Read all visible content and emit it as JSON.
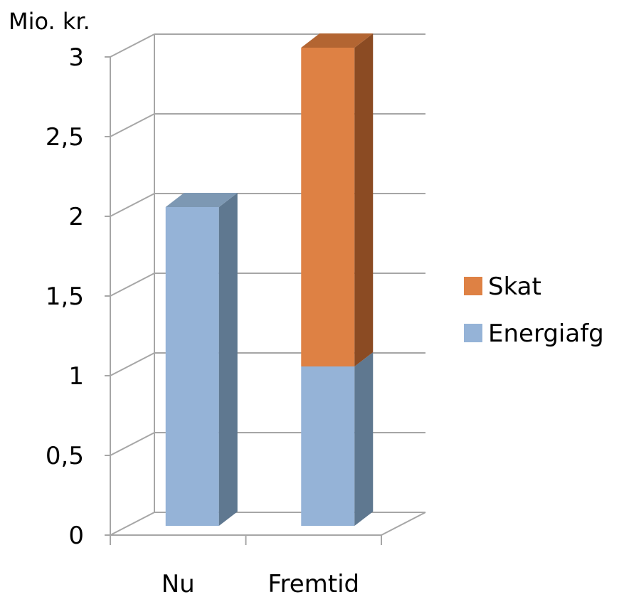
{
  "chart_data": {
    "type": "bar",
    "stacked": true,
    "three_d": true,
    "unit_label": "Mio. kr.",
    "categories": [
      "Nu",
      "Fremtid"
    ],
    "series": [
      {
        "name": "Energiafg",
        "values": [
          2,
          1
        ],
        "color": "#95B3D7",
        "side_color": "#5F7890",
        "top_color": "#7D98B3"
      },
      {
        "name": "Skat",
        "values": [
          0,
          2
        ],
        "color": "#DE8144",
        "side_color": "#8B4B23",
        "top_color": "#B36532"
      }
    ],
    "ylim": [
      0,
      3
    ],
    "yticks": [
      "0",
      "0,5",
      "1",
      "1,5",
      "2",
      "2,5",
      "3"
    ],
    "grid": true,
    "legend_position": "right",
    "legend_order": [
      "Skat",
      "Energiafg"
    ]
  }
}
